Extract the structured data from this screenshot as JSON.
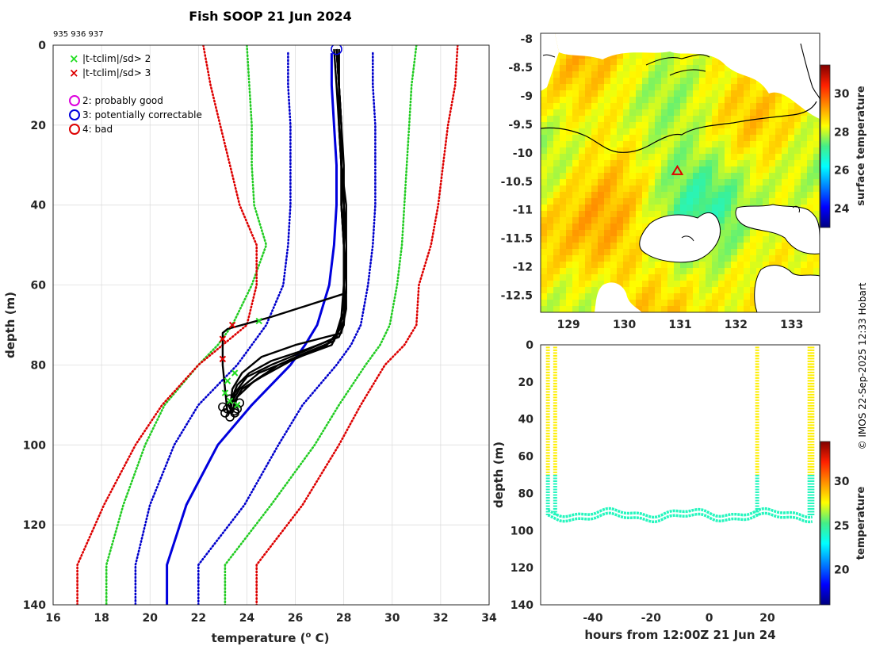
{
  "title": "Fish SOOP 21 Jun 2024",
  "profile_ids": "935 936 937",
  "credit": "© IMOS 22-Sep-2025 12:33 Hobart",
  "legend": {
    "flag_2sd": "|t-tclim|/sd> 2",
    "flag_3sd": "|t-tclim|/sd> 3",
    "qc_2": "2: probably good",
    "qc_3": "3: potentially correctable",
    "qc_4": "4: bad"
  },
  "colors": {
    "clim_mean": "#0000dd",
    "sd1": "#0000cc",
    "sd2": "#22cc22",
    "sd3": "#dd0000",
    "profile": "#000000",
    "flag2": "#22dd22",
    "flag3": "#dd0000",
    "qc2": "#dd00dd",
    "qc3": "#0000dd",
    "qc4": "#dd0000"
  },
  "chart_data": [
    {
      "type": "line",
      "name": "profile",
      "title": "Fish SOOP 21 Jun 2024",
      "xlabel": "temperature (° C)",
      "xlabel_main": "temperature (",
      "xlabel_sup": "o",
      "xlabel_tail": " C)",
      "ylabel": "depth (m)",
      "xlim": [
        16,
        34
      ],
      "ylim": [
        140,
        0
      ],
      "xticks": [
        16,
        18,
        20,
        22,
        24,
        26,
        28,
        30,
        32,
        34
      ],
      "yticks": [
        0,
        20,
        40,
        60,
        80,
        100,
        120,
        140
      ],
      "grid": true,
      "series": [
        {
          "name": "clim-mean",
          "style": "solid",
          "role": "clim_mean",
          "x": [
            27.5,
            27.5,
            27.6,
            27.7,
            27.7,
            27.6,
            27.4,
            26.9,
            26.4,
            25.8,
            24.2,
            22.8,
            21.5,
            20.7,
            20.7
          ],
          "y": [
            2,
            10,
            20,
            30,
            40,
            50,
            60,
            70,
            75,
            80,
            90,
            100,
            115,
            130,
            140
          ]
        },
        {
          "name": "clim-minus-1sd",
          "style": "dotted",
          "role": "sd1",
          "x": [
            25.7,
            25.7,
            25.8,
            25.8,
            25.8,
            25.7,
            25.5,
            24.8,
            24.2,
            23.6,
            22.0,
            21.0,
            20.0,
            19.4,
            19.4
          ],
          "y": [
            2,
            10,
            20,
            30,
            40,
            50,
            60,
            70,
            75,
            80,
            90,
            100,
            115,
            130,
            140
          ]
        },
        {
          "name": "clim-plus-1sd",
          "style": "dotted",
          "role": "sd1",
          "x": [
            29.2,
            29.2,
            29.3,
            29.3,
            29.3,
            29.2,
            29.0,
            28.7,
            28.3,
            27.7,
            26.3,
            25.3,
            23.9,
            22.0,
            22.0
          ],
          "y": [
            2,
            10,
            20,
            30,
            40,
            50,
            60,
            70,
            75,
            80,
            90,
            100,
            115,
            130,
            140
          ]
        },
        {
          "name": "clim-minus-2sd",
          "style": "dotted",
          "role": "sd2",
          "x": [
            24.0,
            24.1,
            24.2,
            24.2,
            24.3,
            24.8,
            24.2,
            23.4,
            22.8,
            22.0,
            20.6,
            19.8,
            18.9,
            18.2,
            18.2
          ],
          "y": [
            0,
            10,
            20,
            30,
            40,
            50,
            60,
            70,
            75,
            80,
            90,
            100,
            115,
            130,
            140
          ]
        },
        {
          "name": "clim-plus-2sd",
          "style": "dotted",
          "role": "sd2",
          "x": [
            31.0,
            30.8,
            30.7,
            30.6,
            30.5,
            30.4,
            30.2,
            29.9,
            29.5,
            28.9,
            27.8,
            26.8,
            25.0,
            23.1,
            23.1
          ],
          "y": [
            0,
            10,
            20,
            30,
            40,
            50,
            60,
            70,
            75,
            80,
            90,
            100,
            115,
            130,
            140
          ]
        },
        {
          "name": "clim-minus-3sd",
          "style": "dotted",
          "role": "sd3",
          "x": [
            22.2,
            22.5,
            22.9,
            23.3,
            23.7,
            24.4,
            24.4,
            24.0,
            23.0,
            22.0,
            20.5,
            19.4,
            18.1,
            17.0,
            17.0
          ],
          "y": [
            0,
            10,
            20,
            30,
            40,
            50,
            60,
            70,
            75,
            80,
            90,
            100,
            115,
            130,
            140
          ]
        },
        {
          "name": "clim-plus-3sd",
          "style": "dotted",
          "role": "sd3",
          "x": [
            32.7,
            32.6,
            32.3,
            32.1,
            31.9,
            31.6,
            31.1,
            31.0,
            30.5,
            29.7,
            28.7,
            27.8,
            26.3,
            24.4,
            24.4
          ],
          "y": [
            0,
            10,
            20,
            30,
            40,
            50,
            60,
            70,
            75,
            80,
            90,
            100,
            115,
            130,
            140
          ]
        },
        {
          "name": "profile-1",
          "style": "solid",
          "role": "profile",
          "x": [
            27.6,
            27.7,
            27.8,
            27.9,
            27.9,
            28.0,
            28.0,
            28.0,
            28.0,
            27.8,
            26.5,
            25.0,
            24.1,
            23.6,
            23.4,
            23.3
          ],
          "y": [
            1,
            10,
            20,
            30,
            40,
            50,
            60,
            65,
            70,
            73,
            76,
            79,
            82,
            85,
            88,
            92
          ]
        },
        {
          "name": "profile-2",
          "style": "solid",
          "role": "profile",
          "x": [
            27.7,
            27.8,
            27.9,
            27.9,
            28.1,
            28.1,
            28.1,
            28.1,
            27.9,
            26.0,
            24.6,
            23.8,
            23.4,
            23.3
          ],
          "y": [
            1,
            10,
            20,
            30,
            40,
            50,
            60,
            66,
            72,
            75,
            78,
            82,
            86,
            91
          ]
        },
        {
          "name": "profile-3",
          "style": "solid",
          "role": "profile",
          "x": [
            27.7,
            27.8,
            27.9,
            27.9,
            27.9,
            28.0,
            28.0,
            28.0,
            27.7,
            26.2,
            25.0,
            24.0,
            23.5,
            23.3
          ],
          "y": [
            1,
            10,
            20,
            30,
            40,
            50,
            60,
            67,
            73,
            77,
            80,
            83,
            87,
            91
          ]
        },
        {
          "name": "profile-4",
          "style": "solid",
          "role": "profile",
          "x": [
            27.8,
            27.8,
            27.9,
            28.0,
            28.0,
            28.0,
            28.0,
            27.9,
            27.6,
            26.4,
            25.3,
            24.3,
            23.6,
            23.4
          ],
          "y": [
            1,
            10,
            20,
            30,
            40,
            50,
            60,
            68,
            74,
            77,
            80,
            84,
            88,
            92
          ]
        },
        {
          "name": "profile-5",
          "style": "solid",
          "role": "profile",
          "x": [
            27.7,
            27.8,
            27.8,
            27.9,
            28.0,
            28.0,
            28.0,
            28.0,
            27.5,
            25.7,
            24.5,
            23.7,
            23.4,
            23.3
          ],
          "y": [
            1,
            10,
            20,
            30,
            40,
            50,
            60,
            69,
            75,
            79,
            82,
            86,
            89,
            92
          ]
        },
        {
          "name": "profile-6",
          "style": "solid",
          "role": "profile",
          "x": [
            27.8,
            27.8,
            27.9,
            27.9,
            28.0,
            28.1,
            28.1,
            28.0,
            27.3,
            25.8,
            24.6,
            23.8,
            23.5,
            23.4
          ],
          "y": [
            1,
            10,
            20,
            30,
            40,
            50,
            60,
            70,
            75,
            79,
            83,
            86,
            89,
            92
          ]
        },
        {
          "name": "profile-7",
          "style": "solid",
          "role": "profile",
          "x": [
            27.7,
            27.8,
            27.8,
            27.9,
            27.9,
            28.0,
            28.1,
            28.1,
            25.0,
            23.2,
            23.0,
            23.0,
            23.1,
            23.2
          ],
          "y": [
            1,
            10,
            20,
            30,
            40,
            50,
            60,
            62,
            68,
            71,
            72,
            80,
            86,
            92
          ]
        }
      ],
      "flags_2sd": {
        "x": [
          24.5,
          23.5,
          23.2,
          23.1,
          23.3,
          23.6
        ],
        "y": [
          69,
          82,
          84,
          87,
          89,
          90
        ]
      },
      "flags_3sd": {
        "x": [
          23.4,
          23.0,
          23.0
        ],
        "y": [
          70,
          73.5,
          78.5
        ]
      },
      "qc_circle": {
        "x": [
          27.7
        ],
        "y": [
          1
        ]
      },
      "bottom_cluster": {
        "x": [
          23.0,
          23.1,
          23.2,
          23.3,
          23.4,
          23.5,
          23.6,
          23.7,
          23.3,
          23.5
        ],
        "y": [
          90.5,
          92,
          91,
          93,
          90,
          92,
          91,
          89.5,
          88.5,
          91.5
        ]
      }
    },
    {
      "type": "heatmap",
      "name": "sst-map",
      "xlabel": "",
      "ylabel": "",
      "xlim": [
        128.5,
        133.5
      ],
      "ylim": [
        -12.8,
        -7.9
      ],
      "xticks": [
        129,
        130,
        131,
        132,
        133
      ],
      "yticks": [
        -8,
        -8.5,
        -9,
        -9.5,
        -10,
        -10.5,
        -11,
        -11.5,
        -12,
        -12.5
      ],
      "marker": {
        "type": "triangle",
        "lon": 130.95,
        "lat": -10.32
      },
      "colorbar": {
        "label": "surface temperature",
        "range": [
          23,
          31.5
        ],
        "ticks": [
          24,
          26,
          28,
          30
        ]
      }
    },
    {
      "type": "scatter",
      "name": "depth-time",
      "xlabel": "hours from 12:00Z 21 Jun 24",
      "ylabel": "depth (m)",
      "xlim": [
        -58,
        38
      ],
      "ylim": [
        140,
        0
      ],
      "xticks": [
        -40,
        -20,
        0,
        20
      ],
      "yticks": [
        0,
        20,
        40,
        60,
        80,
        100,
        120,
        140
      ],
      "profile_times": [
        -55.5,
        -53,
        16.5,
        34.5,
        35.5
      ],
      "deep_temperature": 24.2,
      "surface_temperature": 27.9,
      "colorbar": {
        "label": "temperature",
        "range": [
          16,
          34.5
        ],
        "ticks": [
          20,
          25,
          30
        ]
      }
    }
  ]
}
